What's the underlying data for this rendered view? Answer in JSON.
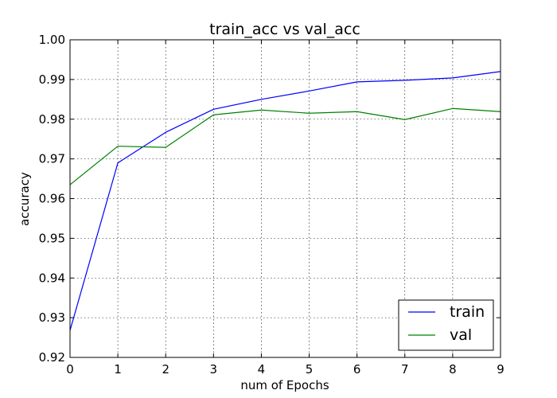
{
  "chart_data": {
    "type": "line",
    "title": "train_acc vs val_acc",
    "xlabel": "num of Epochs",
    "ylabel": "accuracy",
    "x": [
      0,
      1,
      2,
      3,
      4,
      5,
      6,
      7,
      8,
      9
    ],
    "xlim": [
      0,
      9
    ],
    "ylim": [
      0.92,
      1.0
    ],
    "xticks": [
      "0",
      "1",
      "2",
      "3",
      "4",
      "5",
      "6",
      "7",
      "8",
      "9"
    ],
    "yticks": [
      "0.92",
      "0.93",
      "0.94",
      "0.95",
      "0.96",
      "0.97",
      "0.98",
      "0.99",
      "1.00"
    ],
    "grid": true,
    "legend_position": "bottom-right",
    "series": [
      {
        "name": "train",
        "color": "#0000ff",
        "values": [
          0.9268,
          0.969,
          0.9767,
          0.9825,
          0.985,
          0.9871,
          0.9894,
          0.9898,
          0.9904,
          0.992
        ]
      },
      {
        "name": "val",
        "color": "#008000",
        "values": [
          0.9635,
          0.9732,
          0.9729,
          0.9811,
          0.9823,
          0.9815,
          0.9819,
          0.9799,
          0.9827,
          0.9819
        ]
      }
    ]
  }
}
